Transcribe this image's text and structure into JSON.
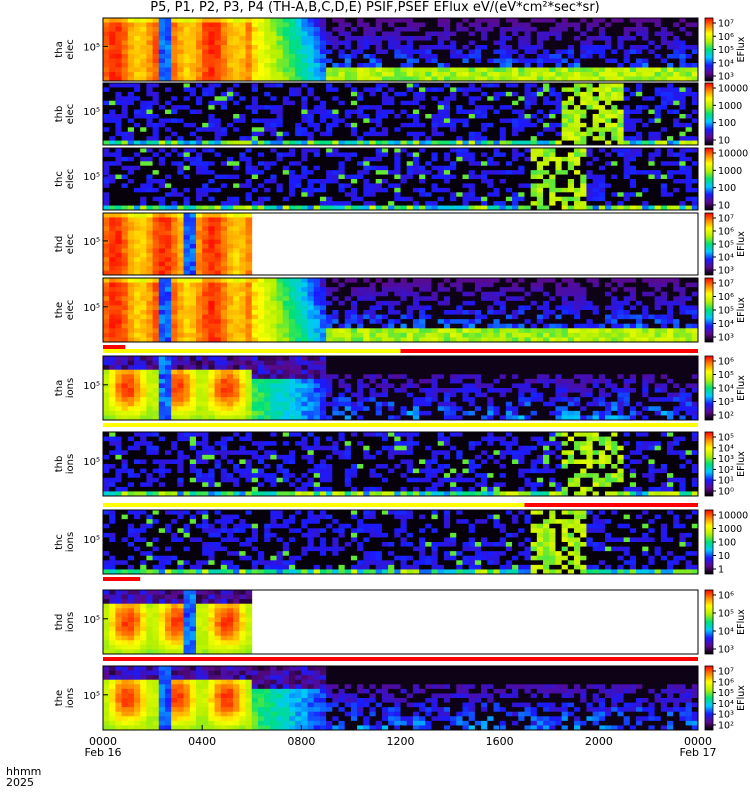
{
  "title": "P5, P1, P2, P3, P4 (TH-A,B,C,D,E) PSIF,PSEF EFlux eV/(eV*cm²*sec*sr)",
  "time_axis": {
    "row_label_1": "hhmm",
    "row_label_2": "2025",
    "ticks": [
      {
        "hour": 0,
        "label": "0000",
        "date": "Feb 16"
      },
      {
        "hour": 4,
        "label": "0400",
        "date": ""
      },
      {
        "hour": 8,
        "label": "0800",
        "date": ""
      },
      {
        "hour": 12,
        "label": "1200",
        "date": ""
      },
      {
        "hour": 16,
        "label": "1600",
        "date": ""
      },
      {
        "hour": 20,
        "label": "2000",
        "date": ""
      },
      {
        "hour": 24,
        "label": "0000",
        "date": "Feb 17"
      }
    ]
  },
  "colors": {
    "spectrum": [
      "#000000",
      "#5a0a8c",
      "#1a1aff",
      "#00c8ff",
      "#00e078",
      "#b4f000",
      "#ffff00",
      "#ff8800",
      "#ff0000"
    ],
    "flag_red": "#ff0000",
    "flag_yellow": "#ffff00"
  },
  "chart_data": [
    {
      "type": "heatmap",
      "probe": "tha",
      "species": "elec",
      "ylabel": [
        "tha",
        "elec"
      ],
      "ytick": "10⁵",
      "cbar_ticks": [
        "10⁷",
        "10⁶",
        "10⁵",
        "10⁴",
        "10³"
      ],
      "cbar_label": "EFlux",
      "profile": "elec_full",
      "data_end_hour": 24,
      "gap_hours": [
        [
          2.42,
          2.58
        ]
      ]
    },
    {
      "type": "heatmap",
      "probe": "thb",
      "species": "elec",
      "ylabel": [
        "thb",
        "elec"
      ],
      "ytick": "10⁵",
      "cbar_ticks": [
        "10000",
        "1000",
        "100",
        "10"
      ],
      "cbar_label": "",
      "profile": "sparse",
      "data_end_hour": 24,
      "burst_hours": [
        18.5,
        20.9
      ]
    },
    {
      "type": "heatmap",
      "probe": "thc",
      "species": "elec",
      "ylabel": [
        "thc",
        "elec"
      ],
      "ytick": "10⁵",
      "cbar_ticks": [
        "10000",
        "1000",
        "100",
        "10"
      ],
      "cbar_label": "",
      "profile": "sparse",
      "data_end_hour": 24,
      "burst_hours": [
        17.3,
        19.5
      ]
    },
    {
      "type": "heatmap",
      "probe": "thd",
      "species": "elec",
      "ylabel": [
        "thd",
        "elec"
      ],
      "ytick": "10⁵",
      "cbar_ticks": [
        "10⁷",
        "10⁶",
        "10⁵",
        "10⁴",
        "10³"
      ],
      "cbar_label": "EFlux",
      "profile": "elec_full",
      "data_end_hour": 6,
      "gap_hours": [
        [
          3.3,
          3.5
        ]
      ]
    },
    {
      "type": "heatmap",
      "probe": "the",
      "species": "elec",
      "ylabel": [
        "the",
        "elec"
      ],
      "ytick": "10⁵",
      "cbar_ticks": [
        "10⁷",
        "10⁶",
        "10⁵",
        "10⁴",
        "10³"
      ],
      "cbar_label": "EFlux",
      "profile": "elec_full",
      "data_end_hour": 24,
      "gap_hours": [
        [
          2.42,
          2.58
        ]
      ],
      "flags": [
        {
          "color": "red",
          "hours": [
            0,
            0.9
          ]
        },
        {
          "color": "yellow",
          "hours": [
            0,
            12
          ]
        },
        {
          "color": "red",
          "hours": [
            12,
            24
          ]
        }
      ]
    },
    {
      "type": "heatmap",
      "probe": "tha",
      "species": "ions",
      "ylabel": [
        "tha",
        "ions"
      ],
      "ytick": "10⁵",
      "cbar_ticks": [
        "10⁶",
        "10⁵",
        "10⁴",
        "10³",
        "10²"
      ],
      "cbar_label": "EFlux",
      "profile": "ions_full",
      "data_end_hour": 24,
      "gap_hours": [
        [
          2.42,
          2.58
        ]
      ],
      "flags": [
        {
          "color": "yellow",
          "hours": [
            0,
            24
          ]
        }
      ]
    },
    {
      "type": "heatmap",
      "probe": "thb",
      "species": "ions",
      "ylabel": [
        "thb",
        "ions"
      ],
      "ytick": "10⁵",
      "cbar_ticks": [
        "10⁵",
        "10⁴",
        "10³",
        "10²",
        "10¹",
        "10⁰"
      ],
      "cbar_label": "EFlux",
      "profile": "sparse",
      "data_end_hour": 24,
      "burst_hours": [
        18.5,
        20.9
      ],
      "flags": [
        {
          "color": "yellow",
          "hours": [
            0,
            17
          ]
        },
        {
          "color": "red",
          "hours": [
            17,
            24
          ]
        }
      ]
    },
    {
      "type": "heatmap",
      "probe": "thc",
      "species": "ions",
      "ylabel": [
        "thc",
        "ions"
      ],
      "ytick": "10⁵",
      "cbar_ticks": [
        "10000",
        "1000",
        "100",
        "10",
        "1"
      ],
      "cbar_label": "",
      "profile": "sparse",
      "data_end_hour": 24,
      "burst_hours": [
        17.3,
        19.5
      ],
      "flags": [
        {
          "color": "red",
          "hours": [
            0,
            1.5
          ]
        }
      ]
    },
    {
      "type": "heatmap",
      "probe": "thd",
      "species": "ions",
      "ylabel": [
        "thd",
        "ions"
      ],
      "ytick": "10⁵",
      "cbar_ticks": [
        "10⁶",
        "10⁵",
        "10⁴",
        "10³"
      ],
      "cbar_label": "EFlux",
      "profile": "ions_full",
      "data_end_hour": 6,
      "gap_hours": [
        [
          3.3,
          3.5
        ]
      ],
      "flags": [
        {
          "color": "red",
          "hours": [
            0,
            24
          ]
        }
      ]
    },
    {
      "type": "heatmap",
      "probe": "the",
      "species": "ions",
      "ylabel": [
        "the",
        "ions"
      ],
      "ytick": "10⁵",
      "cbar_ticks": [
        "10⁷",
        "10⁶",
        "10⁵",
        "10⁴",
        "10³",
        "10²"
      ],
      "cbar_label": "EFlux",
      "profile": "ions_full",
      "data_end_hour": 24,
      "gap_hours": [
        [
          2.42,
          2.58
        ]
      ]
    }
  ]
}
